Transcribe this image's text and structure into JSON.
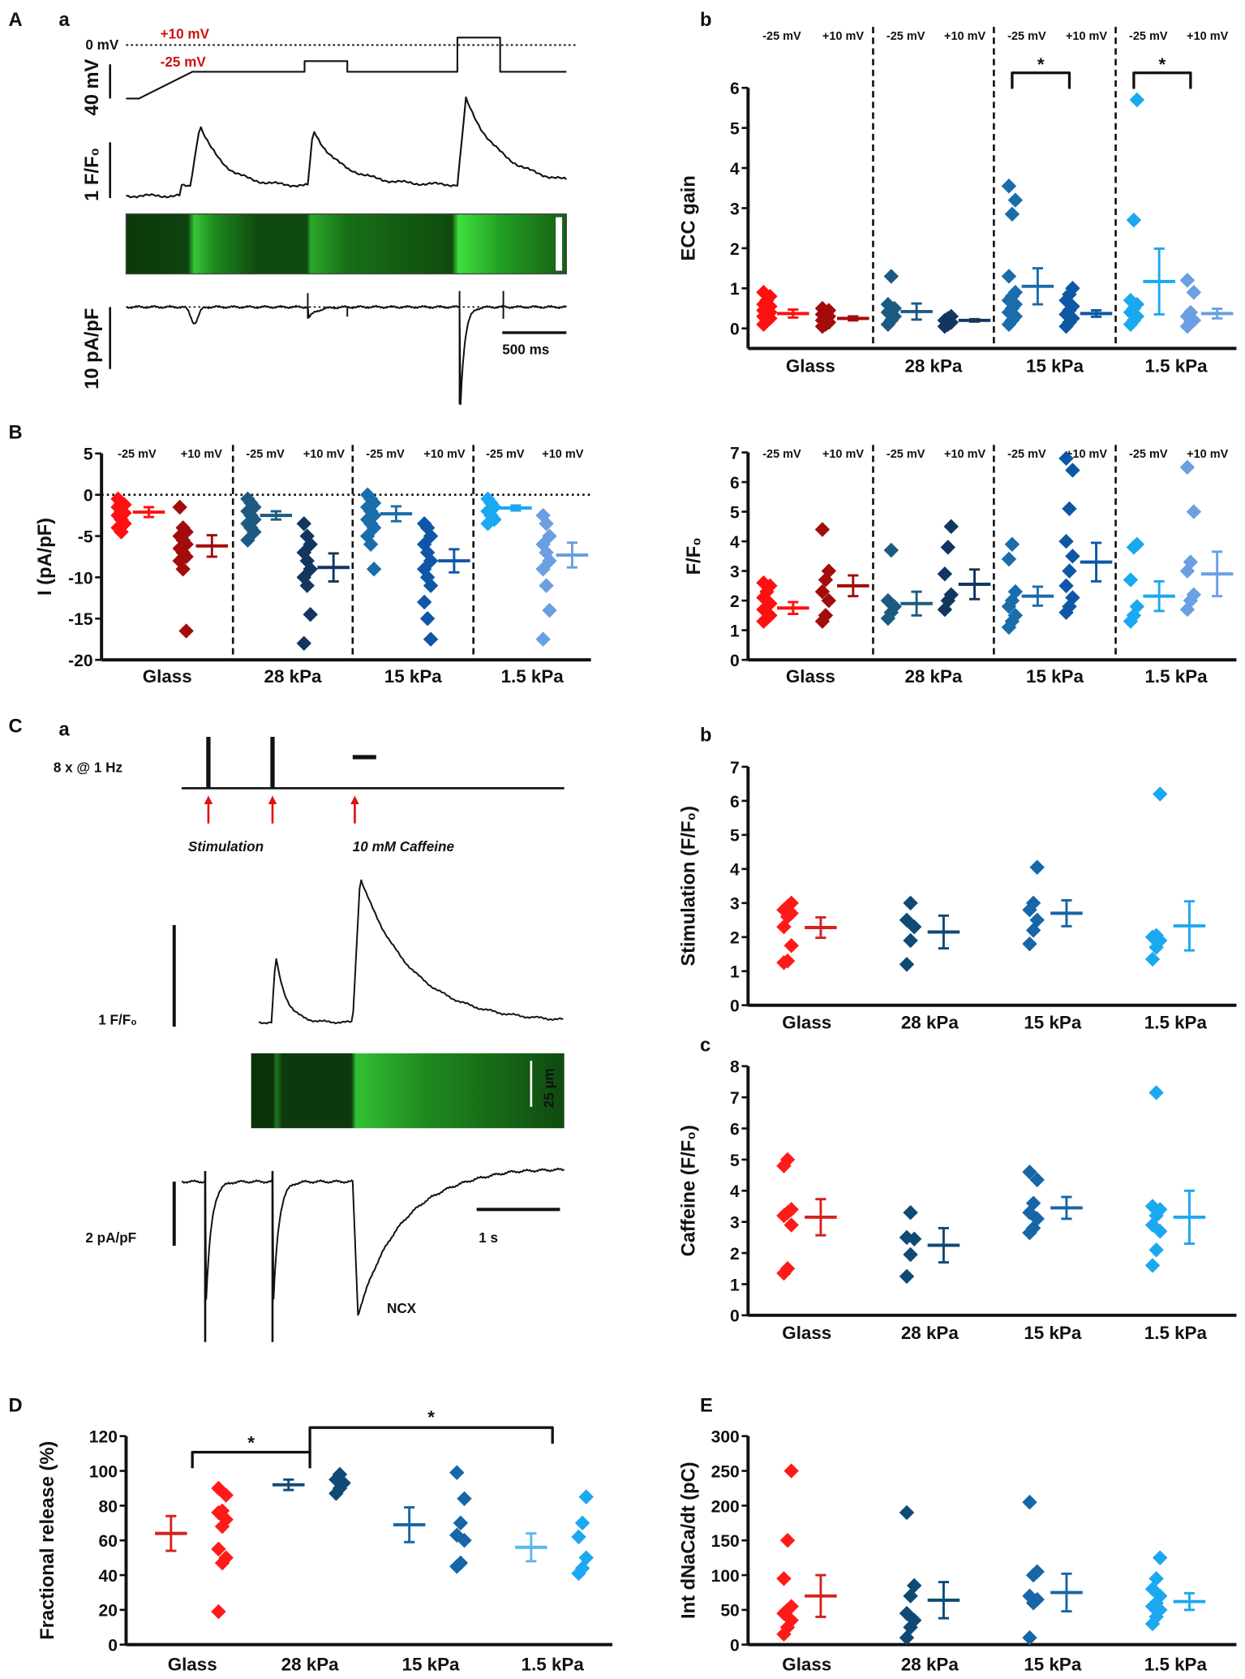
{
  "panel_labels": {
    "A": "A",
    "Aa": "a",
    "Ab": "b",
    "B": "B",
    "C": "C",
    "Ca": "a",
    "Cb": "b",
    "Cc": "c",
    "D": "D",
    "E": "E"
  },
  "trace_A": {
    "zero_label": "0 mV",
    "plus_label": "+10 mV",
    "minus_label": "-25 mV",
    "voltage_scale": "40 mV",
    "fluo_scale": "1 F/F₀",
    "current_scale": "10 pA/pF",
    "time_scale": "500 ms",
    "label_color": "#d01010",
    "image_color": "#2ecc2e"
  },
  "trace_C": {
    "protocol_label": "8 x  @ 1 Hz",
    "stim_label": "Stimulation",
    "caffeine_label": "10 mM Caffeine",
    "fluo_scale": "1 F/F₀",
    "space_scale": "25 µm",
    "current_scale": "2 pA/pF",
    "time_scale": "1 s",
    "ncx_label": "NCX",
    "arrow_color": "#e01010"
  },
  "chart_data": [
    {
      "panel": "Ab",
      "type": "scatter",
      "ylabel": "ECC gain",
      "ylim": [
        -0.5,
        6
      ],
      "yticks": [
        "0",
        "1",
        "2",
        "3",
        "4",
        "5",
        "6"
      ],
      "categories": [
        "Glass",
        "28 kPa",
        "15 kPa",
        "1.5 kPa"
      ],
      "subcategories": [
        "-25 mV",
        "+10 mV"
      ],
      "series": [
        {
          "category": "Glass",
          "condition": "-25 mV",
          "color": "#ff1010",
          "points": [
            0.1,
            0.2,
            0.25,
            0.3,
            0.35,
            0.4,
            0.45,
            0.5,
            0.55,
            0.6,
            0.7,
            0.8,
            0.9
          ],
          "mean": 0.37,
          "sem": 0.1
        },
        {
          "category": "Glass",
          "condition": "+10 mV",
          "color": "#a30c0c",
          "points": [
            0.05,
            0.1,
            0.15,
            0.2,
            0.25,
            0.3,
            0.35,
            0.4,
            0.45,
            0.5
          ],
          "mean": 0.25,
          "sem": 0.05
        },
        {
          "category": "28 kPa",
          "condition": "-25 mV",
          "color": "#1d5a82",
          "points": [
            0.1,
            0.2,
            0.3,
            0.4,
            0.45,
            0.5,
            0.6,
            1.3
          ],
          "mean": 0.42,
          "sem": 0.2
        },
        {
          "category": "28 kPa",
          "condition": "+10 mV",
          "color": "#12365f",
          "points": [
            0.05,
            0.1,
            0.15,
            0.2,
            0.25,
            0.3
          ],
          "mean": 0.2,
          "sem": 0.03
        },
        {
          "category": "15 kPa",
          "condition": "-25 mV",
          "color": "#1a6dab",
          "points": [
            0.1,
            0.2,
            0.3,
            0.4,
            0.5,
            0.6,
            0.7,
            0.8,
            0.9,
            1.3,
            2.85,
            3.2,
            3.55
          ],
          "mean": 1.05,
          "sem": 0.45
        },
        {
          "category": "15 kPa",
          "condition": "+10 mV",
          "color": "#0d57a6",
          "points": [
            0.05,
            0.15,
            0.25,
            0.35,
            0.45,
            0.55,
            0.7,
            0.85,
            1.0
          ],
          "mean": 0.37,
          "sem": 0.08
        },
        {
          "category": "1.5 kPa",
          "condition": "-25 mV",
          "color": "#1aa8f0",
          "points": [
            0.1,
            0.2,
            0.3,
            0.4,
            0.5,
            0.6,
            0.7,
            2.7,
            5.7
          ],
          "mean": 1.17,
          "sem": 0.82
        },
        {
          "category": "1.5 kPa",
          "condition": "+10 mV",
          "color": "#6a9fe2",
          "points": [
            0.05,
            0.15,
            0.2,
            0.3,
            0.4,
            0.9,
            1.2
          ],
          "mean": 0.37,
          "sem": 0.12
        }
      ],
      "significance": [
        {
          "category": "15 kPa",
          "between": [
            "-25 mV",
            "+10 mV"
          ],
          "label": "*"
        },
        {
          "category": "1.5 kPa",
          "between": [
            "-25 mV",
            "+10 mV"
          ],
          "label": "*"
        }
      ]
    },
    {
      "panel": "B-left",
      "type": "scatter",
      "ylabel": "I (pA/pF)",
      "ylim": [
        -20,
        5
      ],
      "yticks": [
        "-20",
        "-15",
        "-10",
        "-5",
        "0",
        "5"
      ],
      "reference_line": 0,
      "categories": [
        "Glass",
        "28 kPa",
        "15 kPa",
        "1.5 kPa"
      ],
      "subcategories": [
        "-25 mV",
        "+10 mV"
      ],
      "series": [
        {
          "category": "Glass",
          "condition": "-25 mV",
          "color": "#ff1010",
          "points": [
            -0.5,
            -1,
            -1.2,
            -1.5,
            -2,
            -2.2,
            -2.5,
            -3,
            -3.5,
            -4,
            -4.5
          ],
          "mean": -2.1,
          "sem": 0.6
        },
        {
          "category": "Glass",
          "condition": "+10 mV",
          "color": "#a30c0c",
          "points": [
            -1.5,
            -4,
            -4.5,
            -5,
            -5.5,
            -6,
            -6.5,
            -7,
            -7.5,
            -8,
            -9,
            -16.5
          ],
          "mean": -6.2,
          "sem": 1.3
        },
        {
          "category": "28 kPa",
          "condition": "-25 mV",
          "color": "#1d5a82",
          "points": [
            -0.5,
            -1,
            -1.5,
            -2,
            -2.5,
            -3,
            -3.5,
            -4,
            -4.5,
            -5.5
          ],
          "mean": -2.5,
          "sem": 0.5
        },
        {
          "category": "28 kPa",
          "condition": "+10 mV",
          "color": "#12365f",
          "points": [
            -3.5,
            -5,
            -6,
            -7,
            -8,
            -9,
            -10,
            -11,
            -14.5,
            -18
          ],
          "mean": -8.8,
          "sem": 1.7
        },
        {
          "category": "15 kPa",
          "condition": "-25 mV",
          "color": "#1a6dab",
          "points": [
            0,
            -0.5,
            -1,
            -1.5,
            -2,
            -2.5,
            -3,
            -3.5,
            -4,
            -5,
            -6,
            -9
          ],
          "mean": -2.3,
          "sem": 0.9
        },
        {
          "category": "15 kPa",
          "condition": "+10 mV",
          "color": "#0d57a6",
          "points": [
            -3.5,
            -4,
            -5,
            -6,
            -7,
            -8,
            -9,
            -10,
            -11,
            -13,
            -15,
            -17.5
          ],
          "mean": -8.0,
          "sem": 1.4
        },
        {
          "category": "1.5 kPa",
          "condition": "-25 mV",
          "color": "#1aa8f0",
          "points": [
            -0.5,
            -1,
            -1.5,
            -2,
            -2.5,
            -3,
            -3.5
          ],
          "mean": -1.6,
          "sem": 0.3
        },
        {
          "category": "1.5 kPa",
          "condition": "+10 mV",
          "color": "#6a9fe2",
          "points": [
            -2.5,
            -3.5,
            -5,
            -6,
            -7,
            -8,
            -9,
            -11,
            -14,
            -17.5
          ],
          "mean": -7.3,
          "sem": 1.5
        }
      ]
    },
    {
      "panel": "B-right",
      "type": "scatter",
      "ylabel": "F/F₀",
      "ylim": [
        0,
        7
      ],
      "yticks": [
        "0",
        "1",
        "2",
        "3",
        "4",
        "5",
        "6",
        "7"
      ],
      "categories": [
        "Glass",
        "28 kPa",
        "15 kPa",
        "1.5 kPa"
      ],
      "subcategories": [
        "-25 mV",
        "+10 mV"
      ],
      "series": [
        {
          "category": "Glass",
          "condition": "-25 mV",
          "color": "#ff1010",
          "points": [
            1.3,
            1.4,
            1.5,
            1.7,
            1.8,
            1.9,
            2.1,
            2.3,
            2.5,
            2.6
          ],
          "mean": 1.75,
          "sem": 0.2
        },
        {
          "category": "Glass",
          "condition": "+10 mV",
          "color": "#a30c0c",
          "points": [
            1.3,
            1.5,
            2,
            2.3,
            2.7,
            3,
            4.4
          ],
          "mean": 2.5,
          "sem": 0.35
        },
        {
          "category": "28 kPa",
          "condition": "-25 mV",
          "color": "#1d5a82",
          "points": [
            1.4,
            1.6,
            1.8,
            2,
            3.7
          ],
          "mean": 1.9,
          "sem": 0.4
        },
        {
          "category": "28 kPa",
          "condition": "+10 mV",
          "color": "#12365f",
          "points": [
            1.7,
            2,
            2.2,
            2.9,
            3.8,
            4.5
          ],
          "mean": 2.55,
          "sem": 0.5
        },
        {
          "category": "15 kPa",
          "condition": "-25 mV",
          "color": "#1a6dab",
          "points": [
            1.1,
            1.3,
            1.5,
            1.8,
            2,
            2.3,
            3.4,
            3.9
          ],
          "mean": 2.15,
          "sem": 0.32
        },
        {
          "category": "15 kPa",
          "condition": "+10 mV",
          "color": "#0d57a6",
          "points": [
            1.6,
            1.8,
            2.1,
            2.5,
            3,
            3.5,
            4,
            5.1,
            6.4,
            6.8
          ],
          "mean": 3.3,
          "sem": 0.65
        },
        {
          "category": "1.5 kPa",
          "condition": "-25 mV",
          "color": "#1aa8f0",
          "points": [
            1.3,
            1.5,
            1.8,
            2.7,
            3.8,
            3.9
          ],
          "mean": 2.15,
          "sem": 0.5
        },
        {
          "category": "1.5 kPa",
          "condition": "+10 mV",
          "color": "#6a9fe2",
          "points": [
            1.7,
            2,
            2.2,
            3,
            3.3,
            5,
            6.5
          ],
          "mean": 2.9,
          "sem": 0.75
        }
      ]
    },
    {
      "panel": "Cb",
      "type": "scatter",
      "ylabel": "Stimulation (F/F₀)",
      "ylim": [
        0,
        7
      ],
      "yticks": [
        "0",
        "1",
        "2",
        "3",
        "4",
        "5",
        "6",
        "7"
      ],
      "categories": [
        "Glass",
        "28 kPa",
        "15 kPa",
        "1.5 kPa"
      ],
      "series": [
        {
          "category": "Glass",
          "color": "#ff1a1a",
          "mean_color": "#d62020",
          "points": [
            1.25,
            1.3,
            1.75,
            2.3,
            2.6,
            2.7,
            2.8,
            2.9,
            3.0
          ],
          "mean": 2.28,
          "sem": 0.3
        },
        {
          "category": "28 kPa",
          "color": "#0f4a75",
          "points": [
            1.2,
            1.9,
            2.3,
            2.5,
            3.0
          ],
          "mean": 2.15,
          "sem": 0.48
        },
        {
          "category": "15 kPa",
          "color": "#1666a8",
          "points": [
            1.8,
            2.2,
            2.5,
            2.8,
            3.0,
            4.05
          ],
          "mean": 2.7,
          "sem": 0.38
        },
        {
          "category": "1.5 kPa",
          "color": "#1ca8f0",
          "points": [
            1.35,
            1.7,
            1.9,
            2.0,
            2.05,
            6.2
          ],
          "mean": 2.33,
          "sem": 0.72
        }
      ]
    },
    {
      "panel": "Cc",
      "type": "scatter",
      "ylabel": "Caffeine (F/F₀)",
      "ylim": [
        0,
        8
      ],
      "yticks": [
        "0",
        "1",
        "2",
        "3",
        "4",
        "5",
        "6",
        "7",
        "8"
      ],
      "categories": [
        "Glass",
        "28 kPa",
        "15 kPa",
        "1.5 kPa"
      ],
      "series": [
        {
          "category": "Glass",
          "color": "#ff1a1a",
          "mean_color": "#d62020",
          "points": [
            1.35,
            1.5,
            2.9,
            3.2,
            3.3,
            3.4,
            4.8,
            5.0
          ],
          "mean": 3.15,
          "sem": 0.58
        },
        {
          "category": "28 kPa",
          "color": "#0f4a75",
          "points": [
            1.25,
            1.95,
            2.45,
            2.5,
            3.3
          ],
          "mean": 2.25,
          "sem": 0.55
        },
        {
          "category": "15 kPa",
          "color": "#1666a8",
          "points": [
            2.65,
            2.8,
            3.1,
            3.3,
            3.6,
            4.35,
            4.6
          ],
          "mean": 3.45,
          "sem": 0.35
        },
        {
          "category": "1.5 kPa",
          "color": "#1ca8f0",
          "points": [
            1.6,
            2.1,
            2.7,
            2.9,
            3.2,
            3.4,
            3.5,
            7.15
          ],
          "mean": 3.15,
          "sem": 0.85
        }
      ]
    },
    {
      "panel": "D",
      "type": "scatter",
      "ylabel": "Fractional release (%)",
      "ylim": [
        0,
        120
      ],
      "yticks": [
        "0",
        "20",
        "40",
        "60",
        "80",
        "100",
        "120"
      ],
      "categories": [
        "Glass",
        "28 kPa",
        "15 kPa",
        "1.5 kPa"
      ],
      "series": [
        {
          "category": "Glass",
          "color": "#ff1a1a",
          "mean_color": "#d62020",
          "points": [
            19,
            47,
            50,
            55,
            68,
            72,
            76,
            77,
            86,
            90
          ],
          "mean": 64,
          "sem": 10
        },
        {
          "category": "28 kPa",
          "color": "#0f4a75",
          "points": [
            87,
            90,
            93,
            95,
            98
          ],
          "mean": 92,
          "sem": 3
        },
        {
          "category": "15 kPa",
          "color": "#1666a8",
          "points": [
            45,
            47,
            60,
            63,
            70,
            84,
            99
          ],
          "mean": 69,
          "sem": 10
        },
        {
          "category": "1.5 kPa",
          "color": "#1ca8f0",
          "mean_color": "#5ab8ee",
          "points": [
            41,
            44,
            50,
            62,
            70,
            85
          ],
          "mean": 56,
          "sem": 8
        }
      ],
      "significance": [
        {
          "between": [
            "Glass",
            "28 kPa"
          ],
          "label": "*"
        },
        {
          "between": [
            "28 kPa",
            "1.5 kPa"
          ],
          "label": "*"
        }
      ]
    },
    {
      "panel": "E",
      "type": "scatter",
      "ylabel": "Int dNaCa/dt (pC)",
      "ylim": [
        0,
        300
      ],
      "yticks": [
        "0",
        "50",
        "100",
        "150",
        "200",
        "250",
        "300"
      ],
      "categories": [
        "Glass",
        "28 kPa",
        "15 kPa",
        "1.5 kPa"
      ],
      "series": [
        {
          "category": "Glass",
          "color": "#ff1a1a",
          "mean_color": "#d62020",
          "points": [
            15,
            25,
            35,
            45,
            50,
            55,
            95,
            150,
            250
          ],
          "mean": 70,
          "sem": 30
        },
        {
          "category": "28 kPa",
          "color": "#0f4a75",
          "points": [
            10,
            25,
            35,
            45,
            70,
            85,
            190
          ],
          "mean": 64,
          "sem": 26
        },
        {
          "category": "15 kPa",
          "color": "#1666a8",
          "points": [
            10,
            60,
            65,
            70,
            100,
            105,
            205
          ],
          "mean": 75,
          "sem": 27
        },
        {
          "category": "1.5 kPa",
          "color": "#1ca8f0",
          "points": [
            30,
            40,
            50,
            55,
            60,
            70,
            80,
            95,
            125
          ],
          "mean": 62,
          "sem": 12
        }
      ]
    }
  ]
}
